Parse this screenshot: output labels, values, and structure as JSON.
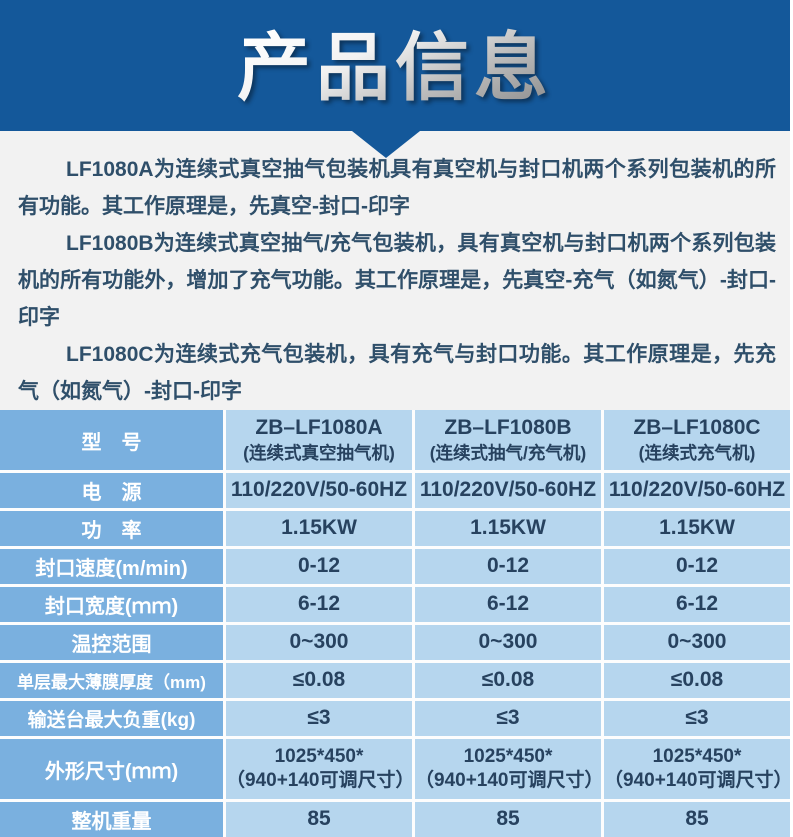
{
  "banner": {
    "title": "产品信息",
    "background": "#14589a"
  },
  "intro": {
    "paragraphs": [
      "LF1080A为连续式真空抽气包装机具有真空机与封口机两个系列包装机的所有功能。其工作原理是，先真空-封口-印字",
      "LF1080B为连续式真空抽气/充气包装机，具有真空机与封口机两个系列包装机的所有功能外，增加了充气功能。其工作原理是，先真空-充气（如氮气）-封口-印字",
      "LF1080C为连续式充气包装机，具有充气与封口功能。其工作原理是，先充气（如氮气）-封口-印字"
    ]
  },
  "table": {
    "header": {
      "label": "型　号",
      "columns": [
        {
          "model": "ZB–LF1080A",
          "subtitle": "(连续式真空抽气机)"
        },
        {
          "model": "ZB–LF1080B",
          "subtitle": "(连续式抽气/充气机)"
        },
        {
          "model": "ZB–LF1080C",
          "subtitle": "(连续式充气机)"
        }
      ]
    },
    "rows": [
      {
        "label": "电　源",
        "values": [
          "110/220V/50-60HZ",
          "110/220V/50-60HZ",
          "110/220V/50-60HZ"
        ]
      },
      {
        "label": "功　率",
        "values": [
          "1.15KW",
          "1.15KW",
          "1.15KW"
        ]
      },
      {
        "label": "封口速度(m/min)",
        "values": [
          "0-12",
          "0-12",
          "0-12"
        ]
      },
      {
        "label": "封口宽度(ｍｍ)",
        "values": [
          "6-12",
          "6-12",
          "6-12"
        ]
      },
      {
        "label": "温控范围",
        "values": [
          "0~300",
          "0~300",
          "0~300"
        ]
      },
      {
        "label": "单层最大薄膜厚度（mm)",
        "values": [
          "≤0.08",
          "≤0.08",
          "≤0.08"
        ]
      },
      {
        "label": "输送台最大负重(kg)",
        "values": [
          "≤3",
          "≤3",
          "≤3"
        ]
      },
      {
        "label": "外形尺寸(ｍｍ)",
        "values": [
          "1025*450*\n（940+140可调尺寸）",
          "1025*450*\n（940+140可调尺寸）",
          "1025*450*\n（940+140可调尺寸）"
        ]
      },
      {
        "label": "整机重量",
        "values": [
          "85",
          "85",
          "85"
        ]
      }
    ],
    "colors": {
      "label_cell_bg": "#7ab0df",
      "data_cell_bg": "#b6d6ee",
      "label_text": "#ffffff",
      "data_text": "#27425f",
      "divider": "#fdfdfd"
    }
  }
}
